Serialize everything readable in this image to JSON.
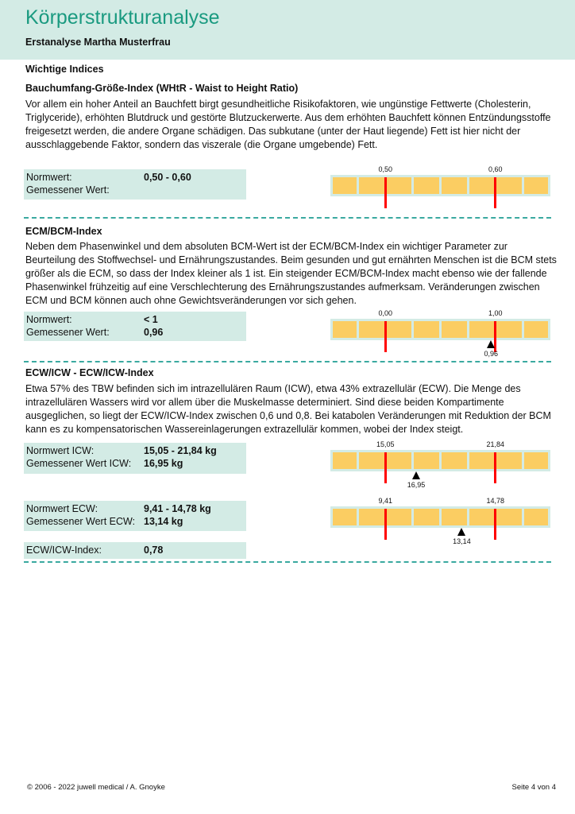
{
  "header": {
    "title": "Körperstrukturanalyse",
    "subtitle": "Erstanalyse Martha Musterfrau"
  },
  "section_title": "Wichtige Indices",
  "colors": {
    "header_bg": "#d3ebe5",
    "title": "#1a9a80",
    "bar": "#fbcd62",
    "norm_line": "#ff0000",
    "divider": "#3aa9a0"
  },
  "sections": [
    {
      "heading": "Bauchumfang-Größe-Index (WHtR - Waist to Height Ratio)",
      "text": "Vor allem ein hoher Anteil an Bauchfett birgt gesundheitliche Risikofaktoren, wie ungünstige Fettwerte (Cholesterin, Triglyceride), erhöhten Blutdruck und gestörte Blutzuckerwerte. Aus dem erhöhten Bauchfett können Entzündungsstoffe freigesetzt werden, die andere Organe schädigen. Das subkutane (unter der Haut liegende) Fett ist hier nicht der ausschlaggebende Faktor, sondern das viszerale (die Organe umgebende) Fett.",
      "rows": [
        {
          "label": "Normwert:",
          "value": "0,50 - 0,60"
        },
        {
          "label": "Gemessener Wert:",
          "value": ""
        }
      ],
      "scale": {
        "low": 0.5,
        "high": 0.6,
        "low_label": "0,50",
        "high_label": "0,60",
        "measured": null,
        "measured_label": ""
      }
    },
    {
      "heading": "ECM/BCM-Index",
      "text": "Neben dem Phasenwinkel und dem absoluten BCM-Wert ist der ECM/BCM-Index ein wichtiger Parameter zur Beurteilung des Stoffwechsel- und Ernährungszustandes. Beim gesunden und gut ernährten Menschen ist die BCM stets größer als die ECM, so dass der Index kleiner als 1 ist. Ein steigender ECM/BCM-Index macht ebenso wie der fallende Phasenwinkel frühzeitig auf eine Verschlechterung des Ernährungszustandes aufmerksam. Veränderungen zwischen ECM und BCM können auch ohne Gewichtsveränderungen vor sich gehen.",
      "rows": [
        {
          "label": "Normwert:",
          "value": "< 1"
        },
        {
          "label": "Gemessener Wert:",
          "value": "0,96"
        }
      ],
      "scale": {
        "low": 0,
        "high": 1,
        "low_label": "0,00",
        "high_label": "1,00",
        "measured": 0.96,
        "measured_label": "0,96"
      }
    },
    {
      "heading": "ECW/ICW - ECW/ICW-Index",
      "text": "Etwa 57% des TBW befinden sich im intrazellulären Raum (ICW), etwa 43% extrazellulär (ECW). Die Menge des intrazellulären Wassers wird vor allem über die Muskelmasse determiniert. Sind diese beiden Kompartimente ausgeglichen, so liegt der ECW/ICW-Index zwischen 0,6 und 0,8. Bei katabolen Veränderungen mit Reduktion der BCM kann es zu kompensatorischen Wassereinlagerungen extrazellulär kommen, wobei der Index steigt.",
      "icw": {
        "rows": [
          {
            "label": "Normwert ICW:",
            "value": "15,05 - 21,84 kg"
          },
          {
            "label": "Gemessener Wert ICW:",
            "value": "16,95 kg"
          }
        ],
        "scale": {
          "low": 15.05,
          "high": 21.84,
          "low_label": "15,05",
          "high_label": "21,84",
          "measured": 16.95,
          "measured_label": "16,95"
        }
      },
      "ecw": {
        "rows": [
          {
            "label": "Normwert ECW:",
            "value": "9,41 - 14,78 kg"
          },
          {
            "label": "Gemessener Wert ECW:",
            "value": "13,14 kg"
          }
        ],
        "scale": {
          "low": 9.41,
          "high": 14.78,
          "low_label": "9,41",
          "high_label": "14,78",
          "measured": 13.14,
          "measured_label": "13,14"
        }
      },
      "index": {
        "label": "ECW/ICW-Index:",
        "value": "0,78"
      }
    }
  ],
  "footer": {
    "left": "© 2006 - 2022 juwell medical / A. Gnoyke",
    "right": "Seite 4 von 4"
  }
}
